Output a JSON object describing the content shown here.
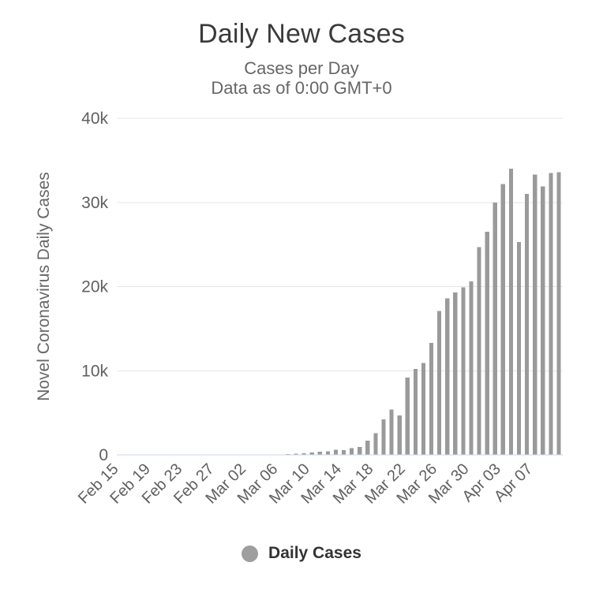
{
  "header": {
    "title": "Daily New Cases",
    "subtitle_line1": "Cases per Day",
    "subtitle_line2": "Data as of 0:00 GMT+0"
  },
  "legend": {
    "label": "Daily Cases",
    "marker_color": "#9e9e9e"
  },
  "colors": {
    "bar": "#9a9a9a",
    "gridline": "#e6e6e6",
    "axis_line": "#ccd6eb",
    "tick_label": "#606060",
    "axis_title": "#666666",
    "title": "#3b3b3b",
    "subtitle": "#666666",
    "background": "#ffffff"
  },
  "chart_data": {
    "type": "bar",
    "title": "Daily New Cases",
    "subtitle": "Cases per Day — Data as of 0:00 GMT+0",
    "series_name": "Daily Cases",
    "xlabel": "",
    "ylabel": "Novel Coronavirus Daily Cases",
    "ylim": [
      0,
      40000
    ],
    "grid": true,
    "legend_position": "bottom",
    "label_every": 4,
    "yticks": [
      {
        "value": 0,
        "label": "0"
      },
      {
        "value": 10000,
        "label": "10k"
      },
      {
        "value": 20000,
        "label": "20k"
      },
      {
        "value": 30000,
        "label": "30k"
      },
      {
        "value": 40000,
        "label": "40k"
      }
    ],
    "x_tick_labels_shown": [
      "Feb 15",
      "Feb 19",
      "Feb 23",
      "Feb 27",
      "Mar 02",
      "Mar 06",
      "Mar 10",
      "Mar 14",
      "Mar 18",
      "Mar 22",
      "Mar 26",
      "Mar 30",
      "Apr 03",
      "Apr 07"
    ],
    "categories": [
      "Feb 15",
      "Feb 16",
      "Feb 17",
      "Feb 18",
      "Feb 19",
      "Feb 20",
      "Feb 21",
      "Feb 22",
      "Feb 23",
      "Feb 24",
      "Feb 25",
      "Feb 26",
      "Feb 27",
      "Feb 28",
      "Feb 29",
      "Mar 01",
      "Mar 02",
      "Mar 03",
      "Mar 04",
      "Mar 05",
      "Mar 06",
      "Mar 07",
      "Mar 08",
      "Mar 09",
      "Mar 10",
      "Mar 11",
      "Mar 12",
      "Mar 13",
      "Mar 14",
      "Mar 15",
      "Mar 16",
      "Mar 17",
      "Mar 18",
      "Mar 19",
      "Mar 20",
      "Mar 21",
      "Mar 22",
      "Mar 23",
      "Mar 24",
      "Mar 25",
      "Mar 26",
      "Mar 27",
      "Mar 28",
      "Mar 29",
      "Mar 30",
      "Mar 31",
      "Apr 01",
      "Apr 02",
      "Apr 03",
      "Apr 04",
      "Apr 05",
      "Apr 06",
      "Apr 07",
      "Apr 08",
      "Apr 09",
      "Apr 10"
    ],
    "values": [
      0,
      0,
      0,
      0,
      0,
      0,
      20,
      0,
      0,
      0,
      0,
      10,
      10,
      10,
      10,
      10,
      25,
      20,
      30,
      70,
      50,
      100,
      120,
      180,
      290,
      370,
      440,
      590,
      550,
      820,
      960,
      1700,
      2600,
      4200,
      5400,
      4700,
      9200,
      10200,
      10900,
      13300,
      17100,
      18600,
      19300,
      19900,
      20600,
      24700,
      26500,
      30000,
      32200,
      34000,
      25300,
      31000,
      33300,
      31900,
      33500,
      33600
    ]
  }
}
